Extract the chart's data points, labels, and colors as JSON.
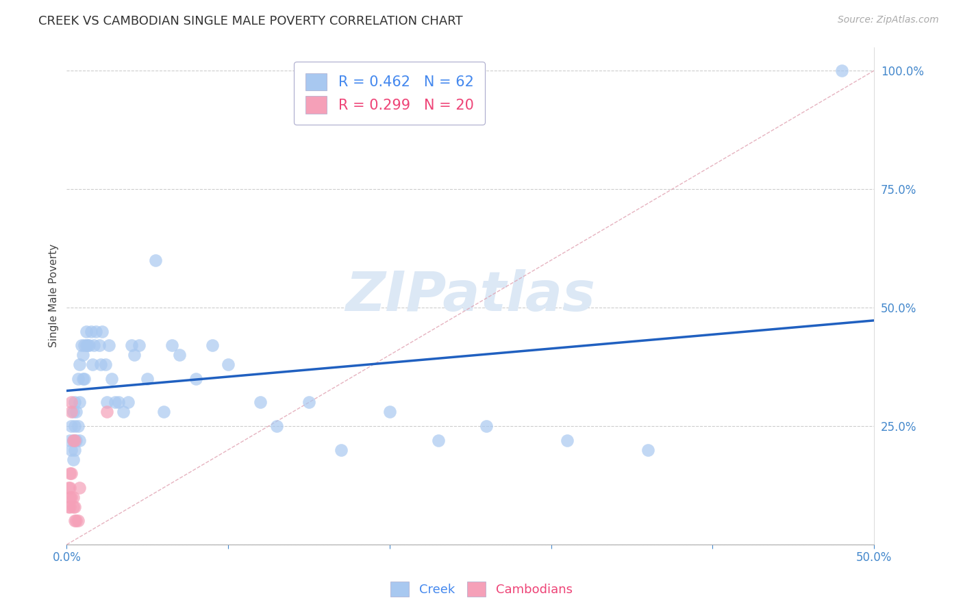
{
  "title": "CREEK VS CAMBODIAN SINGLE MALE POVERTY CORRELATION CHART",
  "source": "Source: ZipAtlas.com",
  "ylabel": "Single Male Poverty",
  "xlim": [
    0.0,
    0.5
  ],
  "ylim": [
    0.0,
    1.05
  ],
  "creek_R": 0.462,
  "creek_N": 62,
  "cambodian_R": 0.299,
  "cambodian_N": 20,
  "creek_color": "#a8c8f0",
  "cambodian_color": "#f5a0b8",
  "creek_line_color": "#2060c0",
  "diag_line_color": "#e0a0b0",
  "watermark_text": "ZIPatlas",
  "watermark_color": "#dce8f5",
  "creek_points_x": [
    0.002,
    0.003,
    0.003,
    0.004,
    0.004,
    0.004,
    0.005,
    0.005,
    0.005,
    0.005,
    0.006,
    0.006,
    0.007,
    0.007,
    0.008,
    0.008,
    0.008,
    0.009,
    0.01,
    0.01,
    0.011,
    0.011,
    0.012,
    0.012,
    0.013,
    0.014,
    0.015,
    0.016,
    0.017,
    0.018,
    0.02,
    0.021,
    0.022,
    0.024,
    0.025,
    0.026,
    0.028,
    0.03,
    0.032,
    0.035,
    0.038,
    0.04,
    0.042,
    0.045,
    0.05,
    0.055,
    0.06,
    0.065,
    0.07,
    0.08,
    0.09,
    0.1,
    0.12,
    0.13,
    0.15,
    0.17,
    0.2,
    0.23,
    0.26,
    0.31,
    0.36,
    0.48
  ],
  "creek_points_y": [
    0.22,
    0.2,
    0.25,
    0.18,
    0.22,
    0.28,
    0.2,
    0.25,
    0.22,
    0.3,
    0.22,
    0.28,
    0.35,
    0.25,
    0.38,
    0.22,
    0.3,
    0.42,
    0.35,
    0.4,
    0.42,
    0.35,
    0.42,
    0.45,
    0.42,
    0.42,
    0.45,
    0.38,
    0.42,
    0.45,
    0.42,
    0.38,
    0.45,
    0.38,
    0.3,
    0.42,
    0.35,
    0.3,
    0.3,
    0.28,
    0.3,
    0.42,
    0.4,
    0.42,
    0.35,
    0.6,
    0.28,
    0.42,
    0.4,
    0.35,
    0.42,
    0.38,
    0.3,
    0.25,
    0.3,
    0.2,
    0.28,
    0.22,
    0.25,
    0.22,
    0.2,
    1.0
  ],
  "cambodian_points_x": [
    0.001,
    0.001,
    0.002,
    0.002,
    0.002,
    0.002,
    0.003,
    0.003,
    0.003,
    0.003,
    0.004,
    0.004,
    0.004,
    0.005,
    0.005,
    0.005,
    0.006,
    0.007,
    0.008,
    0.025
  ],
  "cambodian_points_y": [
    0.08,
    0.12,
    0.08,
    0.1,
    0.15,
    0.12,
    0.28,
    0.3,
    0.1,
    0.15,
    0.22,
    0.1,
    0.08,
    0.22,
    0.08,
    0.05,
    0.05,
    0.05,
    0.12,
    0.28
  ],
  "background_color": "#ffffff",
  "grid_color": "#cccccc"
}
